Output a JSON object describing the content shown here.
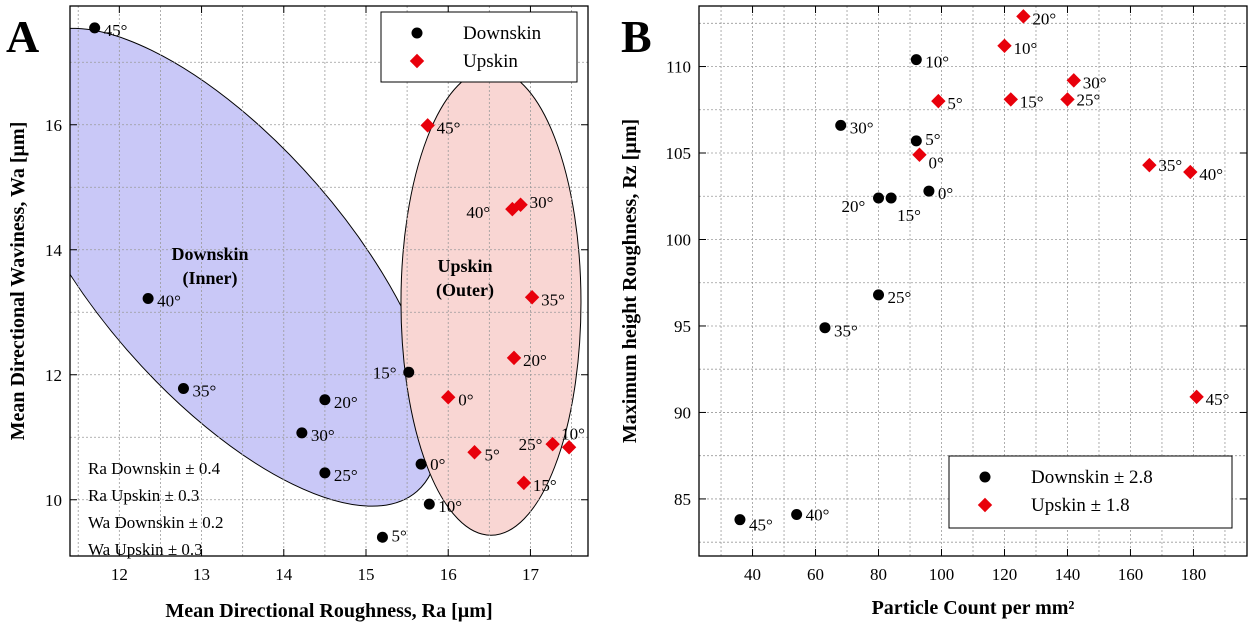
{
  "colors": {
    "downskin": "#000000",
    "upskin": "#e8000b",
    "downskin_region": "#c9c8f7",
    "upskin_region": "#f9d6d3",
    "grid": "#9a9a9a"
  },
  "chart_data": [
    {
      "panel": "A",
      "type": "scatter",
      "xlabel": "Mean Directional Roughness, Ra [µm]",
      "ylabel": "Mean Directional Waviness, Wa [µm]",
      "xlim": [
        11.4,
        17.7
      ],
      "ylim": [
        9.1,
        17.9
      ],
      "xticks": [
        "12",
        "13",
        "14",
        "15",
        "16",
        "17"
      ],
      "yticks": [
        "10",
        "12",
        "14",
        "16"
      ],
      "grid": true,
      "legend_position": "top-right",
      "legend": [
        "Downskin",
        "Upskin"
      ],
      "regions": [
        {
          "name": "downskin",
          "label_lines": [
            "Downskin",
            "(Inner)"
          ]
        },
        {
          "name": "upskin",
          "label_lines": [
            "Upskin",
            "(Outer)"
          ]
        }
      ],
      "notes": [
        "Ra Downskin ± 0.4",
        "Ra Upskin ± 0.3",
        "Wa Downskin ± 0.2",
        "Wa Upskin ± 0.3"
      ],
      "series": [
        {
          "name": "Downskin",
          "marker": "circle",
          "points": [
            {
              "label": "0°",
              "x": 15.67,
              "y": 10.57
            },
            {
              "label": "5°",
              "x": 15.2,
              "y": 9.4
            },
            {
              "label": "10°",
              "x": 15.77,
              "y": 9.93
            },
            {
              "label": "15°",
              "x": 15.52,
              "y": 12.04
            },
            {
              "label": "20°",
              "x": 14.5,
              "y": 11.6
            },
            {
              "label": "25°",
              "x": 14.5,
              "y": 10.43
            },
            {
              "label": "30°",
              "x": 14.22,
              "y": 11.07
            },
            {
              "label": "35°",
              "x": 12.78,
              "y": 11.78
            },
            {
              "label": "40°",
              "x": 12.35,
              "y": 13.22
            },
            {
              "label": "45°",
              "x": 11.7,
              "y": 17.55
            }
          ]
        },
        {
          "name": "Upskin",
          "marker": "diamond",
          "points": [
            {
              "label": "0°",
              "x": 16.0,
              "y": 11.64
            },
            {
              "label": "5°",
              "x": 16.32,
              "y": 10.76
            },
            {
              "label": "10°",
              "x": 17.47,
              "y": 10.84
            },
            {
              "label": "15°",
              "x": 16.92,
              "y": 10.27
            },
            {
              "label": "20°",
              "x": 16.8,
              "y": 12.27
            },
            {
              "label": "25°",
              "x": 17.27,
              "y": 10.89
            },
            {
              "label": "30°",
              "x": 16.88,
              "y": 14.72
            },
            {
              "label": "35°",
              "x": 17.02,
              "y": 13.24
            },
            {
              "label": "40°",
              "x": 16.78,
              "y": 14.65
            },
            {
              "label": "45°",
              "x": 15.75,
              "y": 15.99
            }
          ]
        }
      ]
    },
    {
      "panel": "B",
      "type": "scatter",
      "xlabel": "Particle Count per mm²",
      "ylabel": "Maximum height Roughness, Rz [µm]",
      "xlim": [
        23,
        197
      ],
      "ylim": [
        81.7,
        113.5
      ],
      "xticks": [
        "40",
        "60",
        "80",
        "100",
        "120",
        "140",
        "160",
        "180"
      ],
      "yticks": [
        "85",
        "90",
        "95",
        "100",
        "105",
        "110"
      ],
      "grid": true,
      "legend_position": "bottom-right",
      "legend": [
        "Downskin ± 2.8",
        "Upskin ± 1.8"
      ],
      "series": [
        {
          "name": "Downskin ± 2.8",
          "marker": "circle",
          "points": [
            {
              "label": "0°",
              "x": 96,
              "y": 102.8
            },
            {
              "label": "5°",
              "x": 92,
              "y": 105.7
            },
            {
              "label": "10°",
              "x": 92,
              "y": 110.4
            },
            {
              "label": "15°",
              "x": 84,
              "y": 102.4
            },
            {
              "label": "20°",
              "x": 80,
              "y": 102.4
            },
            {
              "label": "25°",
              "x": 80,
              "y": 96.8
            },
            {
              "label": "30°",
              "x": 68,
              "y": 106.6
            },
            {
              "label": "35°",
              "x": 63,
              "y": 94.9
            },
            {
              "label": "40°",
              "x": 54,
              "y": 84.1
            },
            {
              "label": "45°",
              "x": 36,
              "y": 83.8
            }
          ]
        },
        {
          "name": "Upskin ± 1.8",
          "marker": "diamond",
          "points": [
            {
              "label": "0°",
              "x": 93,
              "y": 104.9
            },
            {
              "label": "5°",
              "x": 99,
              "y": 108.0
            },
            {
              "label": "10°",
              "x": 120,
              "y": 111.2
            },
            {
              "label": "15°",
              "x": 122,
              "y": 108.1
            },
            {
              "label": "20°",
              "x": 126,
              "y": 112.9
            },
            {
              "label": "25°",
              "x": 140,
              "y": 108.1
            },
            {
              "label": "30°",
              "x": 142,
              "y": 109.2
            },
            {
              "label": "35°",
              "x": 166,
              "y": 104.3
            },
            {
              "label": "40°",
              "x": 179,
              "y": 103.9
            },
            {
              "label": "45°",
              "x": 181,
              "y": 90.9
            }
          ]
        }
      ]
    }
  ]
}
